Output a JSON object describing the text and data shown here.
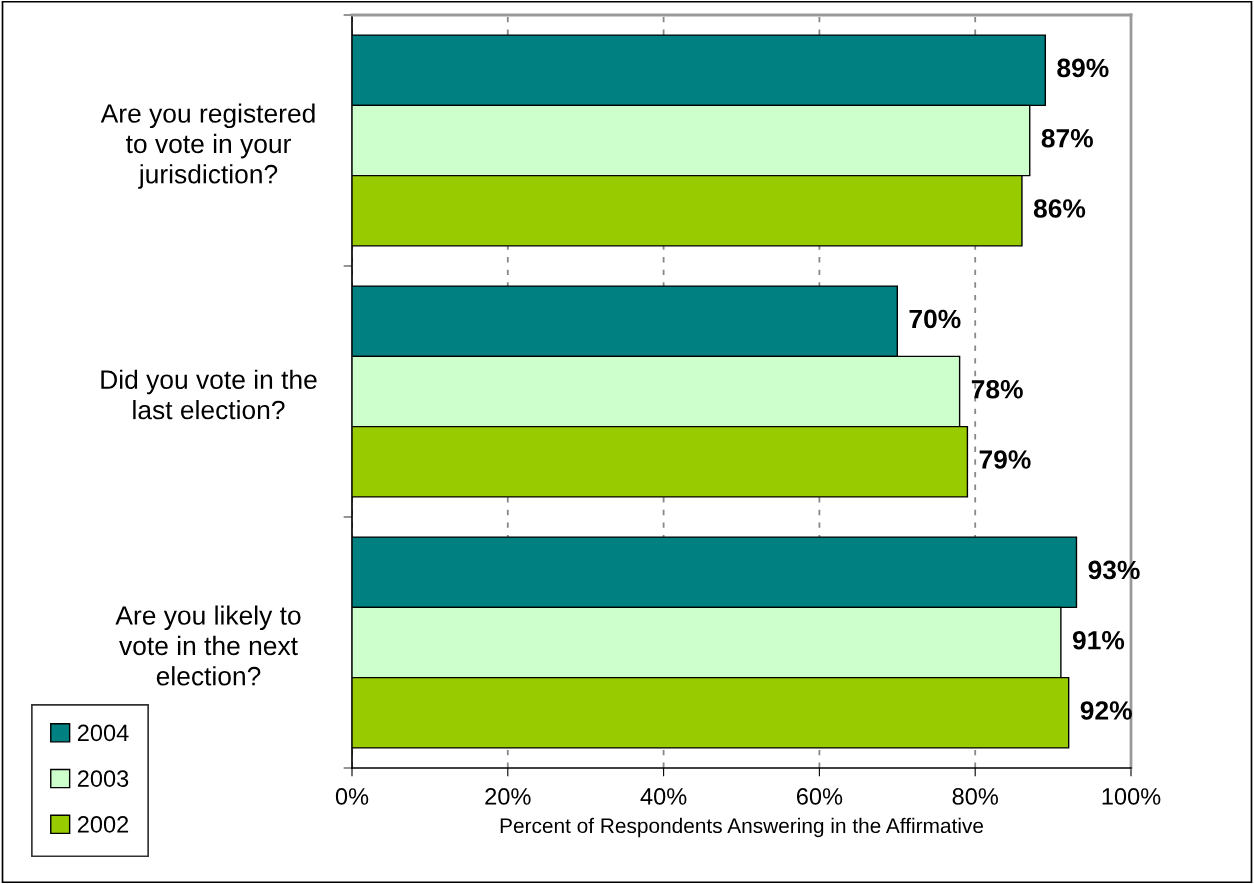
{
  "chart_data": {
    "type": "bar",
    "orientation": "horizontal",
    "xlabel": "Percent of Respondents Answering in the Affirmative",
    "categories": [
      "Are you registered\nto vote in your\njurisdiction?",
      "Did you vote in the\nlast election?",
      "Are you likely to\nvote in the next\nelection?"
    ],
    "series": [
      {
        "name": "2004",
        "color": "#008080",
        "values": [
          89,
          70,
          93
        ],
        "value_labels": [
          "89%",
          "70%",
          "93%"
        ]
      },
      {
        "name": "2003",
        "color": "#ccffcc",
        "values": [
          87,
          78,
          91
        ],
        "value_labels": [
          "87%",
          "78%",
          "91%"
        ]
      },
      {
        "name": "2002",
        "color": "#99cc00",
        "values": [
          86,
          79,
          92
        ],
        "value_labels": [
          "86%",
          "79%",
          "92%"
        ]
      }
    ],
    "xlim": [
      0,
      100
    ],
    "xticks": [
      {
        "value": 0,
        "label": "0%"
      },
      {
        "value": 20,
        "label": "20%"
      },
      {
        "value": 40,
        "label": "40%"
      },
      {
        "value": 60,
        "label": "60%"
      },
      {
        "value": 80,
        "label": "80%"
      },
      {
        "value": 100,
        "label": "100%"
      }
    ],
    "grid": "x",
    "legend": "bottom left"
  }
}
